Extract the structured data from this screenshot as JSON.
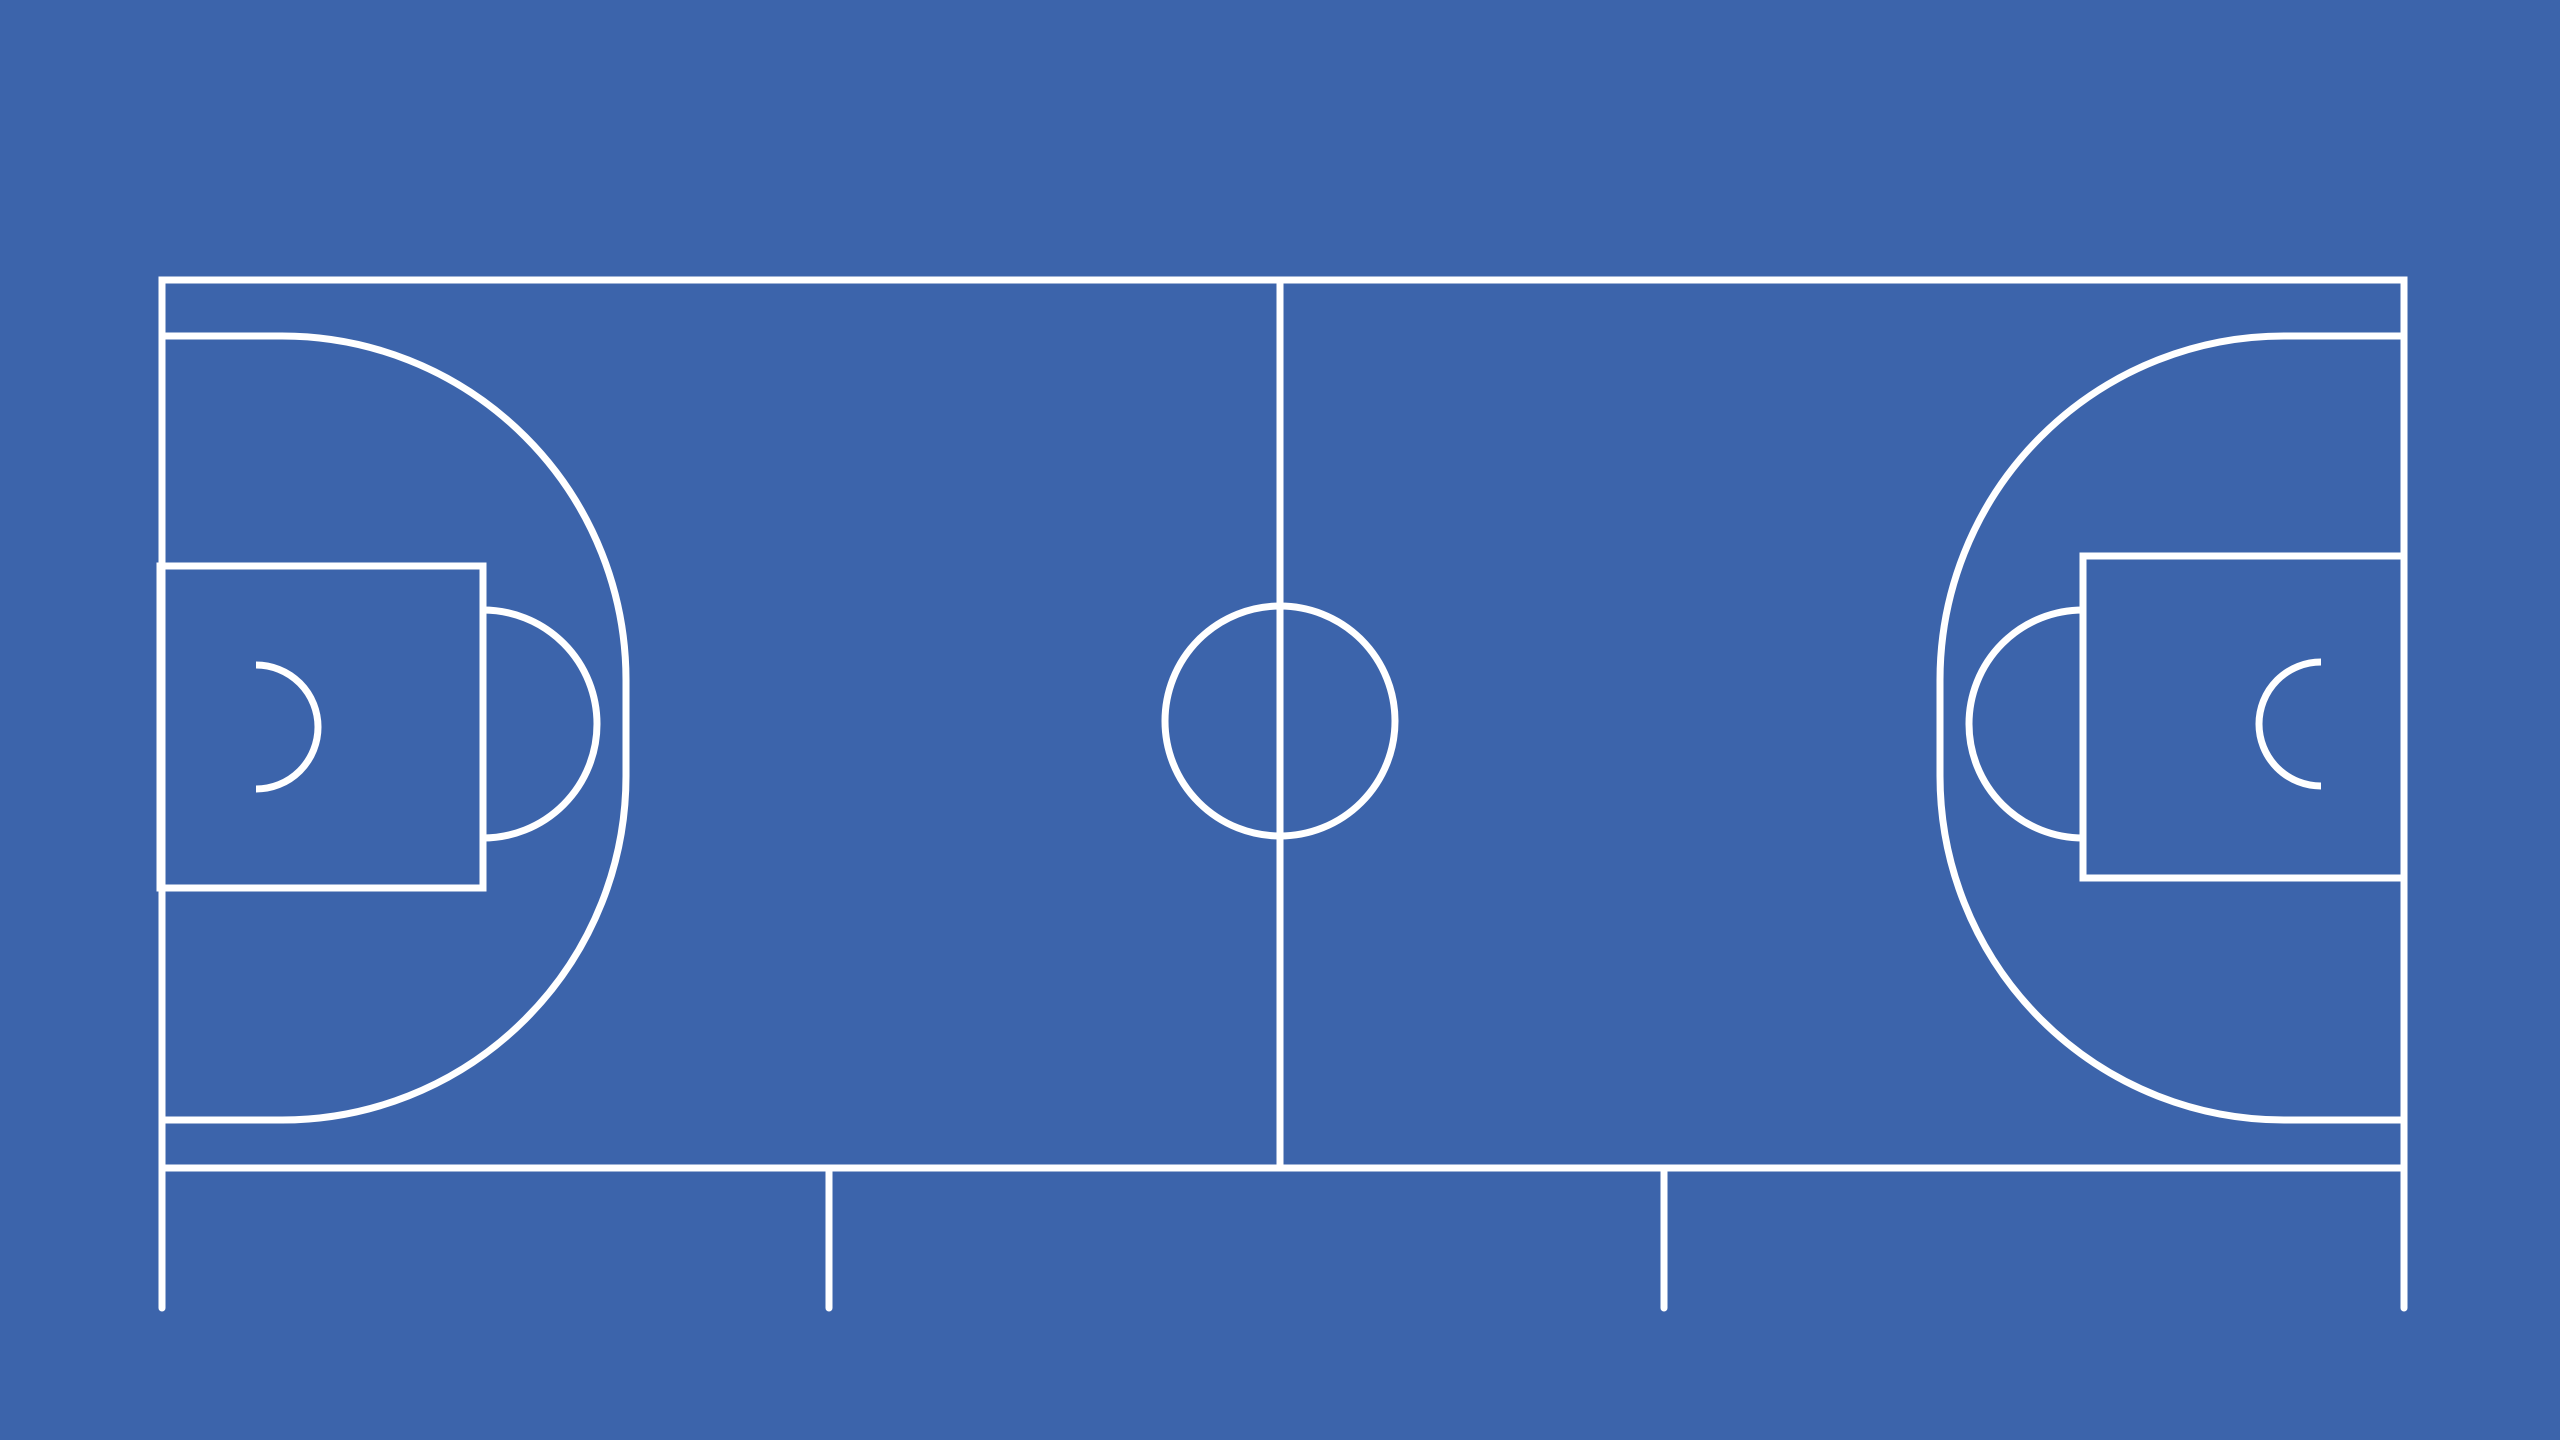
{
  "court": {
    "type": "basketball-court-diagram",
    "orientation": "horizontal",
    "colors": {
      "floor": "#3c64ab",
      "lines": "#ffffff"
    },
    "markings": {
      "center_circle": true,
      "half_court_line": true,
      "three_point_arcs": 2,
      "free_throw_lanes": 2,
      "free_throw_circles": 2,
      "restricted_area_arcs": 2,
      "bench_marker_ticks": 4
    }
  }
}
